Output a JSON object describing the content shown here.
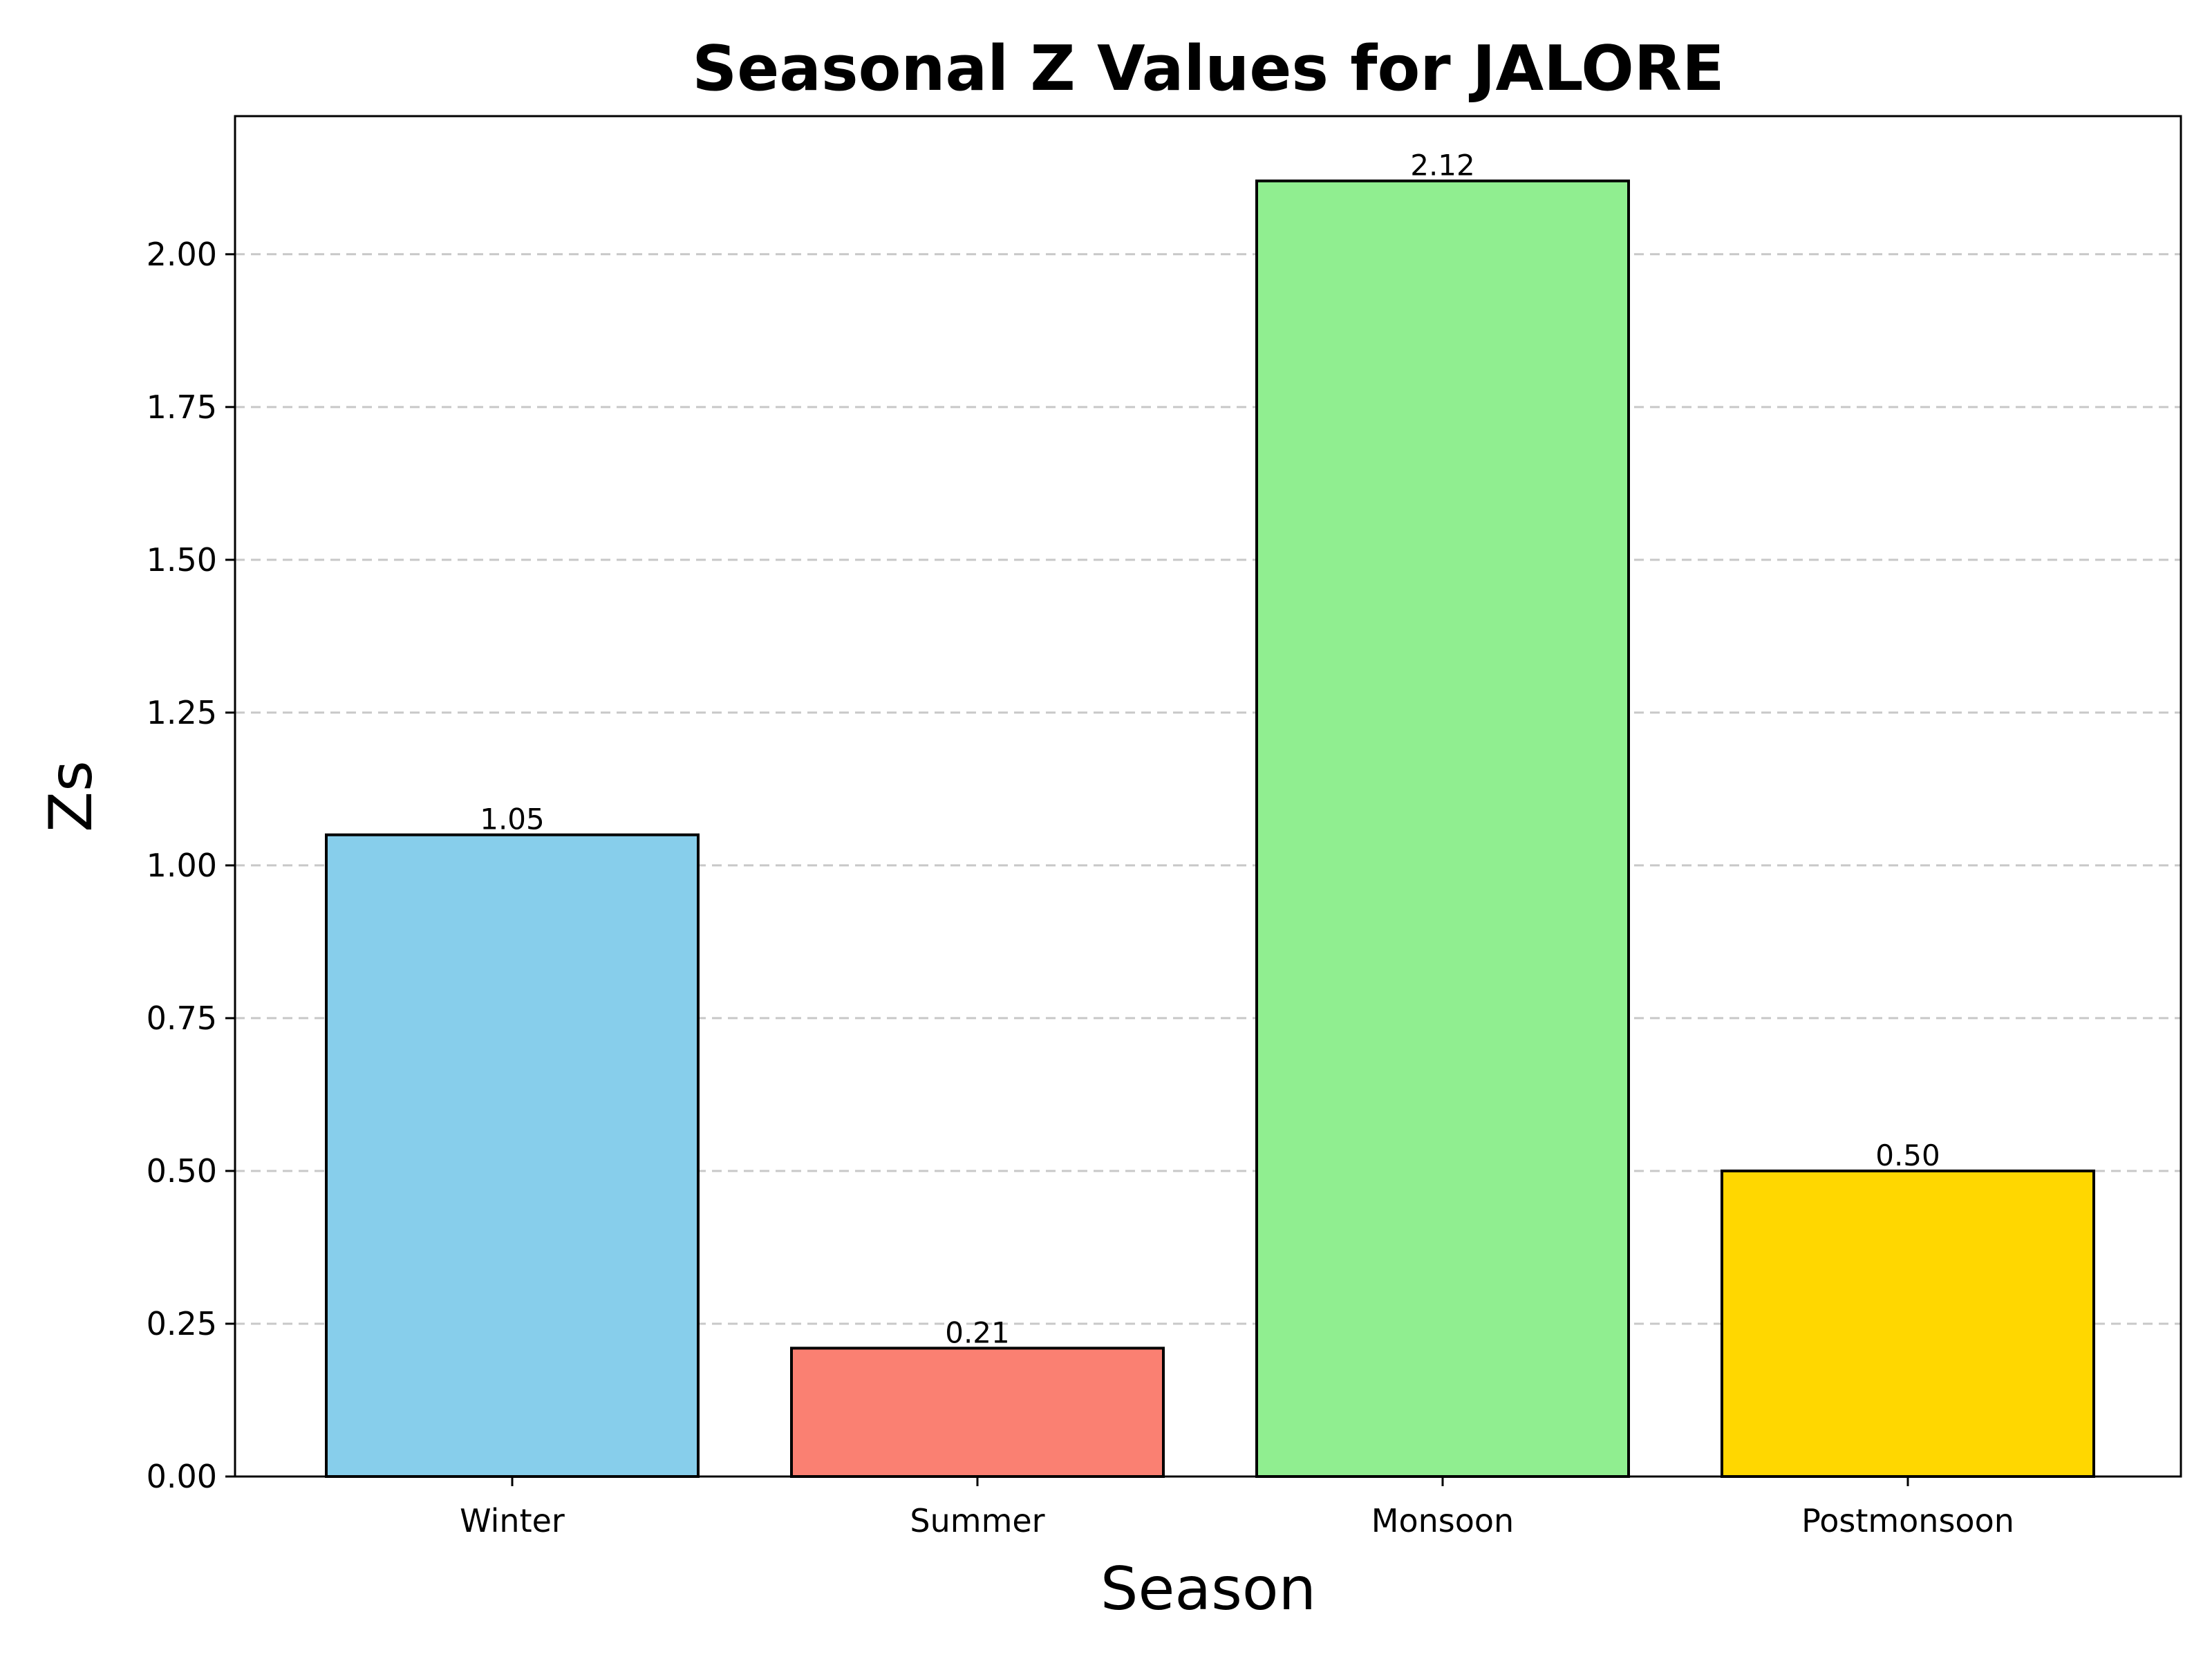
{
  "chart_data": {
    "type": "bar",
    "title": "Seasonal Z Values for JALORE",
    "xlabel": "Season",
    "ylabel": "Zs",
    "categories": [
      "Winter",
      "Summer",
      "Monsoon",
      "Postmonsoon"
    ],
    "values": [
      1.05,
      0.21,
      2.12,
      0.5
    ],
    "value_labels": [
      "1.05",
      "0.21",
      "2.12",
      "0.50"
    ],
    "colors": [
      "#87ceeb",
      "#fa8072",
      "#90ee90",
      "#ffd700"
    ],
    "ylim": [
      0,
      2.226
    ],
    "yticks": [
      0,
      0.25,
      0.5,
      0.75,
      1.0,
      1.25,
      1.5,
      1.75,
      2.0
    ],
    "ytick_labels": [
      "0.00",
      "0.25",
      "0.50",
      "0.75",
      "1.00",
      "1.25",
      "1.50",
      "1.75",
      "2.00"
    ],
    "grid": "y-dashed",
    "legend": "none"
  }
}
